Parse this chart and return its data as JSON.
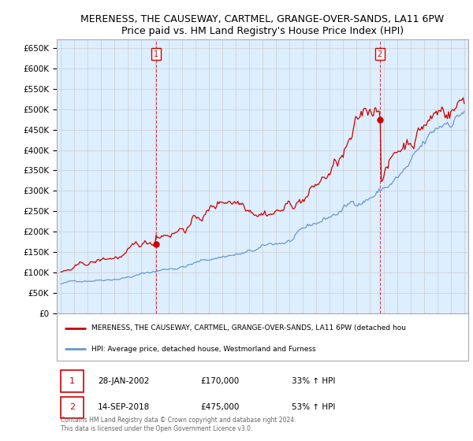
{
  "title": "MERENESS, THE CAUSEWAY, CARTMEL, GRANGE-OVER-SANDS, LA11 6PW",
  "subtitle": "Price paid vs. HM Land Registry's House Price Index (HPI)",
  "ylim": [
    0,
    670000
  ],
  "yticks": [
    0,
    50000,
    100000,
    150000,
    200000,
    250000,
    300000,
    350000,
    400000,
    450000,
    500000,
    550000,
    600000,
    650000
  ],
  "ytick_labels": [
    "£0",
    "£50K",
    "£100K",
    "£150K",
    "£200K",
    "£250K",
    "£300K",
    "£350K",
    "£400K",
    "£450K",
    "£500K",
    "£550K",
    "£600K",
    "£650K"
  ],
  "ann1_x": 2002.08,
  "ann1_y": 170000,
  "ann2_x": 2018.71,
  "ann2_y": 475000,
  "legend_line1_label": "MERENESS, THE CAUSEWAY, CARTMEL, GRANGE-OVER-SANDS, LA11 6PW (detached hou",
  "legend_line2_label": "HPI: Average price, detached house, Westmorland and Furness",
  "footer1": "Contains HM Land Registry data © Crown copyright and database right 2024.",
  "footer2": "This data is licensed under the Open Government Licence v3.0.",
  "table_row1": [
    "1",
    "28-JAN-2002",
    "£170,000",
    "33% ↑ HPI"
  ],
  "table_row2": [
    "2",
    "14-SEP-2018",
    "£475,000",
    "53% ↑ HPI"
  ],
  "red_line_color": "#cc0000",
  "blue_line_color": "#6699cc",
  "fill_color": "#ddeeff",
  "background_color": "#ffffff",
  "grid_color": "#cccccc",
  "xlim": [
    1994.7,
    2025.3
  ],
  "xticks": [
    1995,
    1996,
    1997,
    1998,
    1999,
    2000,
    2001,
    2002,
    2003,
    2004,
    2005,
    2006,
    2007,
    2008,
    2009,
    2010,
    2011,
    2012,
    2013,
    2014,
    2015,
    2016,
    2017,
    2018,
    2019,
    2020,
    2021,
    2022,
    2023,
    2024,
    2025
  ]
}
